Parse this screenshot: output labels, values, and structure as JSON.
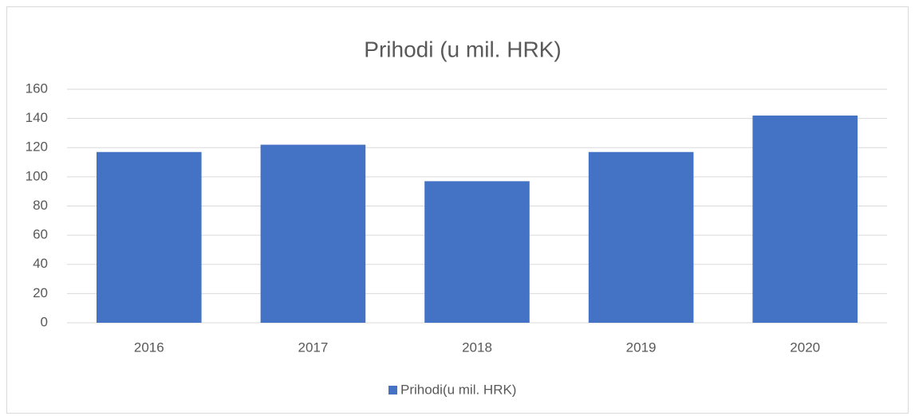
{
  "chart_data": {
    "type": "bar",
    "title": "Prihodi (u mil. HRK)",
    "categories": [
      "2016",
      "2017",
      "2018",
      "2019",
      "2020"
    ],
    "series": [
      {
        "name": "Prihodi(u mil. HRK)",
        "color": "#4472c4",
        "values": [
          117,
          122,
          97,
          117,
          142
        ]
      }
    ],
    "ylim": [
      0,
      160
    ],
    "yticks": [
      0,
      20,
      40,
      60,
      80,
      100,
      120,
      140,
      160
    ],
    "grid": true,
    "legend": "bottom"
  }
}
